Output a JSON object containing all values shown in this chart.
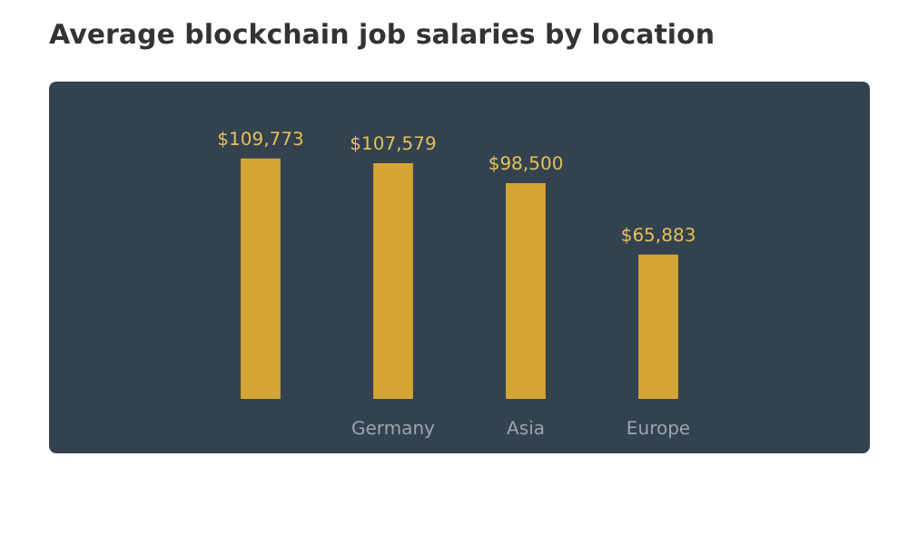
{
  "chart_data": {
    "type": "bar",
    "title": "Average blockchain job salaries by location",
    "categories": [
      null,
      "Germany",
      "Asia",
      "Europe"
    ],
    "values": [
      109773,
      107579,
      98500,
      65883
    ],
    "value_labels": [
      "$109,773",
      "$107,579",
      "$98,500",
      "$65,883"
    ],
    "color": "#d4a535"
  }
}
